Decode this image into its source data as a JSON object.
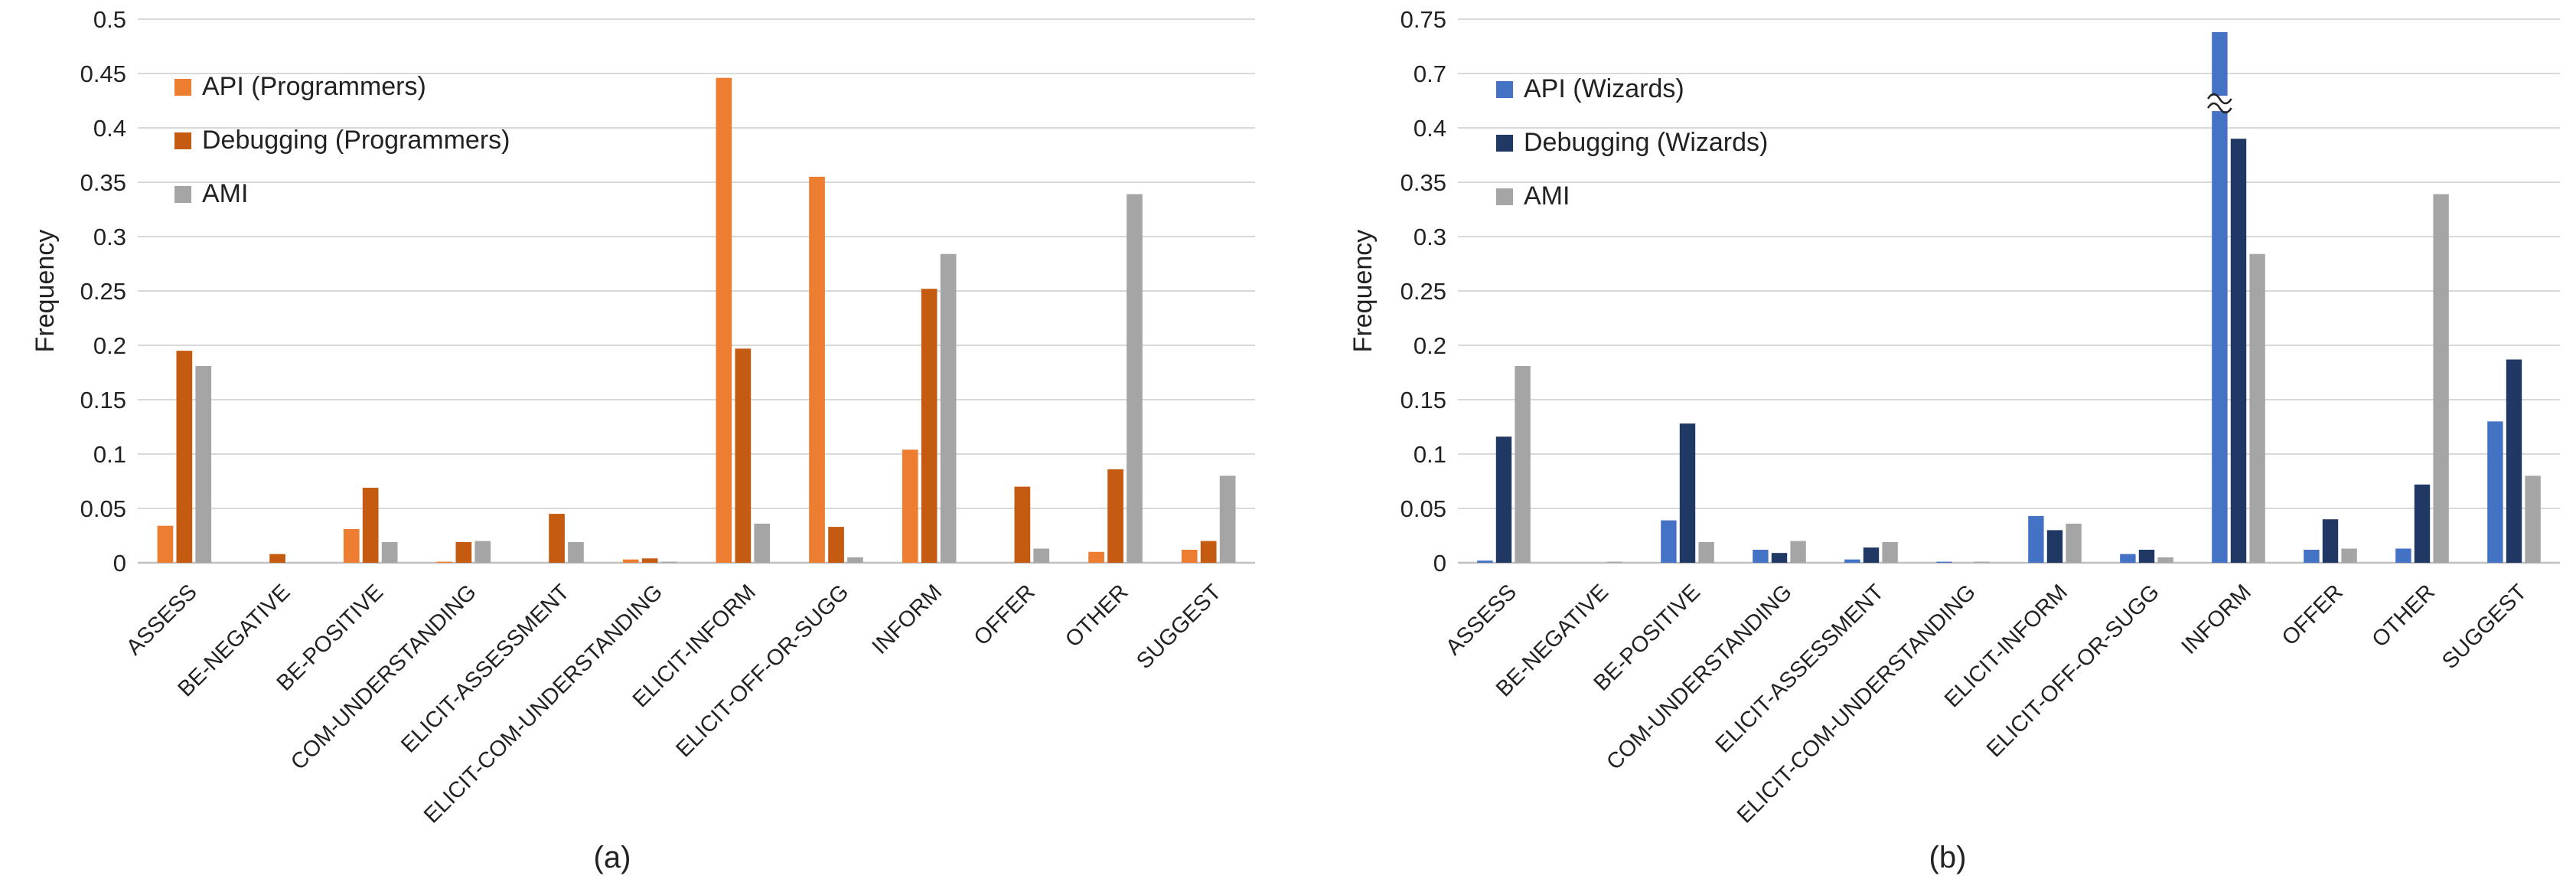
{
  "chart_data": [
    {
      "type": "bar",
      "panel_label": "(a)",
      "title": "",
      "xlabel": "",
      "ylabel": "Frequency",
      "ylim": [
        0,
        0.5
      ],
      "yticks": [
        "0",
        "0.05",
        "0.1",
        "0.15",
        "0.2",
        "0.25",
        "0.3",
        "0.35",
        "0.4",
        "0.45",
        "0.5"
      ],
      "grid": true,
      "legend_position": "top-left",
      "categories": [
        "ASSESS",
        "BE-NEGATIVE",
        "BE-POSITIVE",
        "COM-UNDERSTANDING",
        "ELICIT-ASSESSMENT",
        "ELICIT-COM-UNDERSTANDING",
        "ELICIT-INFORM",
        "ELICIT-OFF-OR-SUGG",
        "INFORM",
        "OFFER",
        "OTHER",
        "SUGGEST"
      ],
      "series": [
        {
          "name": "API (Programmers)",
          "color": "#ED7D31",
          "values": [
            0.034,
            0,
            0.031,
            0.001,
            0,
            0.003,
            0.446,
            0.355,
            0.104,
            0,
            0.01,
            0.012
          ]
        },
        {
          "name": "Debugging (Programmers)",
          "color": "#C55A11",
          "values": [
            0.195,
            0.008,
            0.069,
            0.019,
            0.045,
            0.004,
            0.197,
            0.033,
            0.252,
            0.07,
            0.086,
            0.02
          ]
        },
        {
          "name": "AMI",
          "color": "#A5A5A5",
          "values": [
            0.181,
            0,
            0.019,
            0.02,
            0.019,
            0.001,
            0.036,
            0.005,
            0.284,
            0.013,
            0.339,
            0.08
          ]
        }
      ]
    },
    {
      "type": "bar",
      "panel_label": "(b)",
      "title": "",
      "xlabel": "",
      "ylabel": "Frequency",
      "ylim": [
        0,
        0.75
      ],
      "yticks": [
        "0",
        "0.05",
        "0.1",
        "0.15",
        "0.2",
        "0.25",
        "0.3",
        "0.35",
        "0.4",
        "0.7",
        "0.75"
      ],
      "axis_break": {
        "from": 0.4,
        "to": 0.7
      },
      "grid": true,
      "legend_position": "top-left",
      "categories": [
        "ASSESS",
        "BE-NEGATIVE",
        "BE-POSITIVE",
        "COM-UNDERSTANDING",
        "ELICIT-ASSESSMENT",
        "ELICIT-COM-UNDERSTANDING",
        "ELICIT-INFORM",
        "ELICIT-OFF-OR-SUGG",
        "INFORM",
        "OFFER",
        "OTHER",
        "SUGGEST"
      ],
      "series": [
        {
          "name": "API (Wizards)",
          "color": "#4472C4",
          "values": [
            0.002,
            0,
            0.039,
            0.012,
            0.003,
            0.001,
            0.043,
            0.008,
            0.738,
            0.012,
            0.013,
            0.13
          ]
        },
        {
          "name": "Debugging (Wizards)",
          "color": "#203864",
          "values": [
            0.116,
            0,
            0.128,
            0.009,
            0.014,
            0,
            0.03,
            0.012,
            0.39,
            0.04,
            0.072,
            0.187
          ]
        },
        {
          "name": "AMI",
          "color": "#A5A5A5",
          "values": [
            0.181,
            0.001,
            0.019,
            0.02,
            0.019,
            0.001,
            0.036,
            0.005,
            0.284,
            0.013,
            0.339,
            0.08
          ]
        }
      ]
    }
  ]
}
